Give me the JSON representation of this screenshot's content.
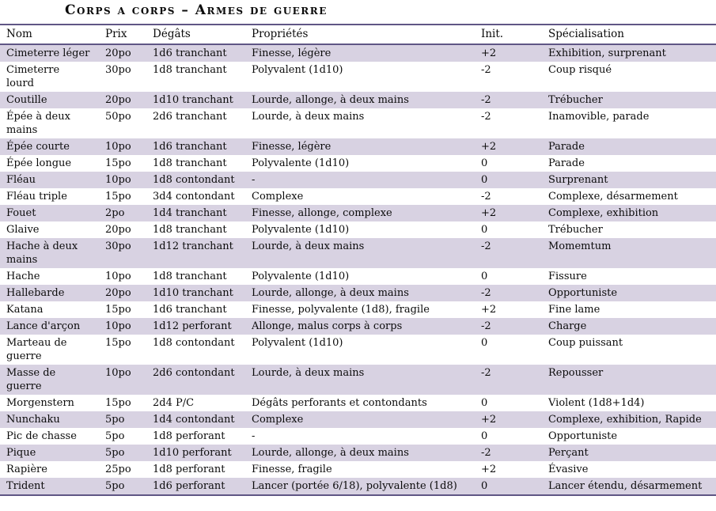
{
  "title": "Corps a corps – Armes de guerre",
  "colors": {
    "stripe": "#d8d2e2",
    "line": "#5f5685",
    "text": "#0b0b0b"
  },
  "table": {
    "columns": [
      "Nom",
      "Prix",
      "Dégâts",
      "Propriétés",
      "Init.",
      "Spécialisation"
    ],
    "rows": [
      {
        "nom": "Cimeterre léger",
        "prix": "20po",
        "degats": "1d6 tranchant",
        "proprietes": "Finesse, légère",
        "init": "+2",
        "specialisation": "Exhibition, surprenant"
      },
      {
        "nom": "Cimeterre\nlourd",
        "prix": "30po",
        "degats": "1d8 tranchant",
        "proprietes": "Polyvalent (1d10)",
        "init": "-2",
        "specialisation": "Coup risqué"
      },
      {
        "nom": "Coutille",
        "prix": "20po",
        "degats": "1d10 tranchant",
        "proprietes": "Lourde, allonge, à deux mains",
        "init": "-2",
        "specialisation": "Trébucher"
      },
      {
        "nom": "Épée à deux\nmains",
        "prix": "50po",
        "degats": "2d6 tranchant",
        "proprietes": "Lourde, à deux mains",
        "init": "-2",
        "specialisation": "Inamovible, parade"
      },
      {
        "nom": "Épée courte",
        "prix": "10po",
        "degats": "1d6 tranchant",
        "proprietes": "Finesse, légère",
        "init": "+2",
        "specialisation": "Parade"
      },
      {
        "nom": "Épée longue",
        "prix": "15po",
        "degats": "1d8 tranchant",
        "proprietes": "Polyvalente (1d10)",
        "init": "0",
        "specialisation": "Parade"
      },
      {
        "nom": "Fléau",
        "prix": "10po",
        "degats": "1d8 contondant",
        "proprietes": "-",
        "init": "0",
        "specialisation": "Surprenant"
      },
      {
        "nom": "Fléau triple",
        "prix": "15po",
        "degats": "3d4 contondant",
        "proprietes": "Complexe",
        "init": "-2",
        "specialisation": "Complexe, désarmement"
      },
      {
        "nom": "Fouet",
        "prix": "2po",
        "degats": "1d4 tranchant",
        "proprietes": "Finesse, allonge, complexe",
        "init": "+2",
        "specialisation": "Complexe, exhibition"
      },
      {
        "nom": "Glaive",
        "prix": "20po",
        "degats": "1d8 tranchant",
        "proprietes": "Polyvalente (1d10)",
        "init": "0",
        "specialisation": "Trébucher"
      },
      {
        "nom": "Hache à deux\nmains",
        "prix": "30po",
        "degats": "1d12 tranchant",
        "proprietes": "Lourde, à deux mains",
        "init": "-2",
        "specialisation": "Momemtum"
      },
      {
        "nom": "Hache",
        "prix": "10po",
        "degats": "1d8 tranchant",
        "proprietes": "Polyvalente (1d10)",
        "init": "0",
        "specialisation": "Fissure"
      },
      {
        "nom": "Hallebarde",
        "prix": "20po",
        "degats": "1d10 tranchant",
        "proprietes": "Lourde, allonge, à deux mains",
        "init": "-2",
        "specialisation": "Opportuniste"
      },
      {
        "nom": "Katana",
        "prix": "15po",
        "degats": "1d6 tranchant",
        "proprietes": "Finesse, polyvalente (1d8), fragile",
        "init": "+2",
        "specialisation": "Fine lame"
      },
      {
        "nom": "Lance d'arçon",
        "prix": "10po",
        "degats": "1d12 perforant",
        "proprietes": "Allonge, malus corps à corps",
        "init": "-2",
        "specialisation": "Charge"
      },
      {
        "nom": "Marteau de\nguerre",
        "prix": "15po",
        "degats": "1d8 contondant",
        "proprietes": "Polyvalent (1d10)",
        "init": "0",
        "specialisation": "Coup puissant"
      },
      {
        "nom": "Masse de\nguerre",
        "prix": "10po",
        "degats": "2d6 contondant",
        "proprietes": "Lourde, à deux mains",
        "init": "-2",
        "specialisation": "Repousser"
      },
      {
        "nom": "Morgenstern",
        "prix": "15po",
        "degats": "2d4 P/C",
        "proprietes": "Dégâts perforants et contondants",
        "init": "0",
        "specialisation": "Violent (1d8+1d4)"
      },
      {
        "nom": "Nunchaku",
        "prix": "5po",
        "degats": "1d4 contondant",
        "proprietes": "Complexe",
        "init": "+2",
        "specialisation": "Complexe, exhibition, Rapide"
      },
      {
        "nom": "Pic de chasse",
        "prix": "5po",
        "degats": "1d8 perforant",
        "proprietes": "-",
        "init": "0",
        "specialisation": "Opportuniste"
      },
      {
        "nom": "Pique",
        "prix": "5po",
        "degats": "1d10 perforant",
        "proprietes": "Lourde, allonge, à deux mains",
        "init": "-2",
        "specialisation": "Perçant"
      },
      {
        "nom": "Rapière",
        "prix": "25po",
        "degats": "1d8 perforant",
        "proprietes": "Finesse, fragile",
        "init": "+2",
        "specialisation": "Évasive"
      },
      {
        "nom": "Trident",
        "prix": "5po",
        "degats": "1d6 perforant",
        "proprietes": "Lancer (portée 6/18), polyvalente (1d8)",
        "init": "0",
        "specialisation": "Lancer étendu, désarmement"
      }
    ]
  }
}
